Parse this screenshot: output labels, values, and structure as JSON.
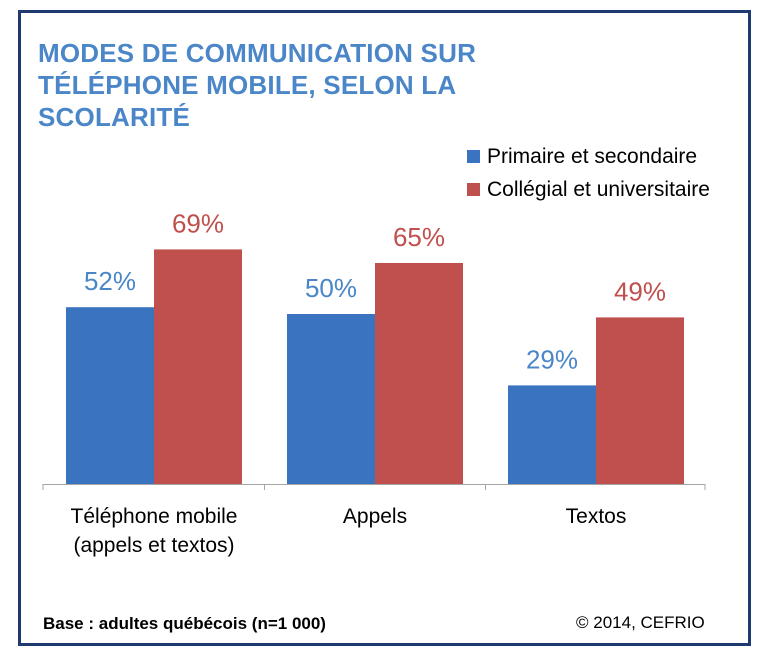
{
  "title": "MODES DE COMMUNICATION SUR TÉLÉPHONE MOBILE, SELON LA SCOLARITÉ",
  "title_lines": [
    "MODES DE COMMUNICATION  SUR",
    "TÉLÉPHONE MOBILE, SELON LA",
    "SCOLARITÉ"
  ],
  "colors": {
    "series1": "#3a74c1",
    "series2": "#c0504d",
    "title": "#4a86c8",
    "frame": "#1f3a70",
    "label1": "#4a86c8",
    "label2": "#c0504d"
  },
  "chart_data": {
    "type": "bar",
    "categories": [
      [
        "Téléphone mobile",
        "(appels et textos)"
      ],
      [
        "Appels"
      ],
      [
        "Textos"
      ]
    ],
    "series": [
      {
        "name": "Primaire et secondaire",
        "values": [
          52,
          50,
          29
        ]
      },
      {
        "name": "Collégial et universitaire",
        "values": [
          69,
          65,
          49
        ]
      }
    ],
    "value_suffix": "%",
    "ylim": [
      0,
      100
    ],
    "grid": false,
    "legend_position": "top-right"
  },
  "footer": {
    "base": "Base : adultes québécois (n=1 000)",
    "credit": "© 2014, CEFRIO"
  }
}
